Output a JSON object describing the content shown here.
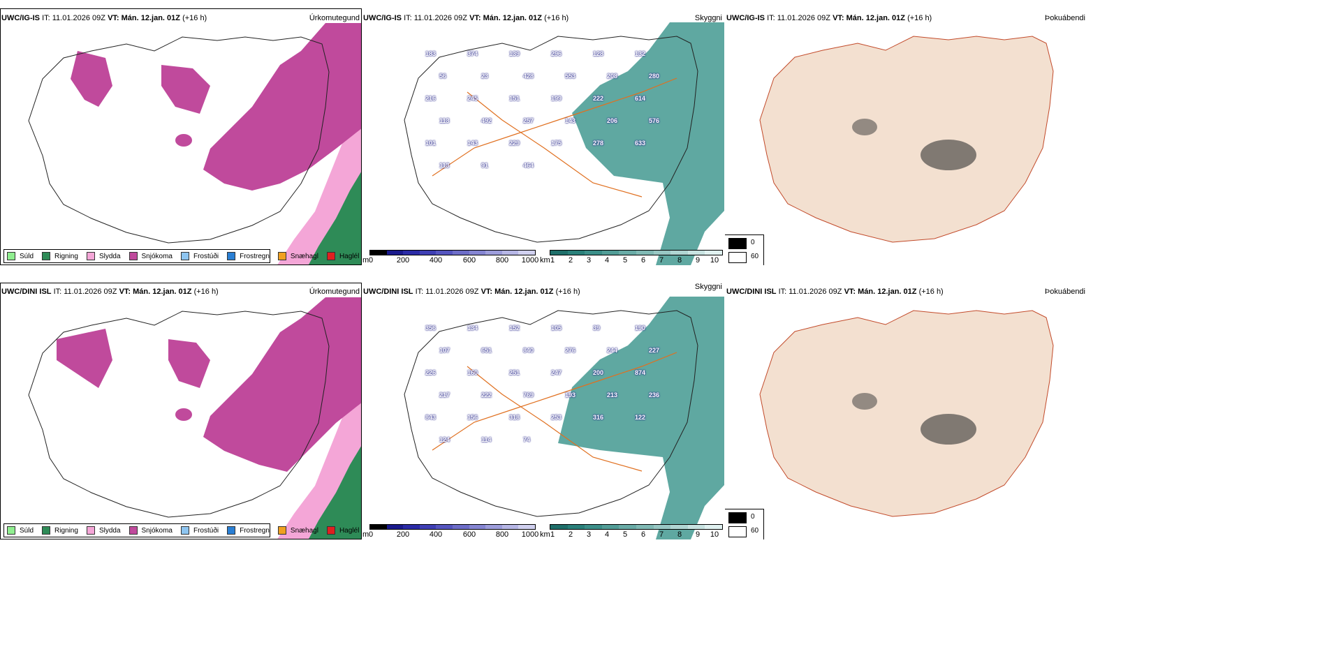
{
  "rows": [
    {
      "model": "UWC/IG-IS",
      "it_label": "IT:",
      "it": "11.01.2026 09Z",
      "vt_label": "VT:",
      "vt": "Mán. 12.jan. 01Z",
      "lead": "(+16 h)"
    },
    {
      "model": "UWC/DINI ISL",
      "it_label": "IT:",
      "it": "11.01.2026 09Z",
      "vt_label": "VT:",
      "vt": "Mán. 12.jan. 01Z",
      "lead": "(+16 h)"
    }
  ],
  "panels": {
    "precip": {
      "title": "Úrkomutegund"
    },
    "cloud": {
      "title": "Skyggni"
    },
    "fog": {
      "title": "Þokuábendi"
    }
  },
  "precip_legend": [
    {
      "label": "Súld",
      "color": "#90ee90"
    },
    {
      "label": "Rigning",
      "color": "#2e8b57"
    },
    {
      "label": "Slydda",
      "color": "#f4a6d7"
    },
    {
      "label": "Snjókoma",
      "color": "#c04a9c"
    },
    {
      "label": "Frostúði",
      "color": "#8ec5f0"
    },
    {
      "label": "Frostregn",
      "color": "#2a7fd4"
    },
    {
      "label": "Snæhagl",
      "color": "#f0a020"
    },
    {
      "label": "Haglél",
      "color": "#e02020"
    }
  ],
  "height_bar": {
    "unit": "m",
    "ticks": [
      "0",
      "200",
      "400",
      "600",
      "800",
      "1000"
    ],
    "colors": [
      "#000000",
      "#1a1a8c",
      "#2b2ba6",
      "#3f3fb4",
      "#5555bf",
      "#6d6dc8",
      "#8585d2",
      "#9d9ddb",
      "#b6b6e5",
      "#d0d0ef"
    ]
  },
  "visibility_bar": {
    "unit": "km",
    "ticks": [
      "1",
      "2",
      "3",
      "4",
      "5",
      "6",
      "7",
      "8",
      "9",
      "10"
    ],
    "colors": [
      "#1f6f6a",
      "#2a807a",
      "#3c8f89",
      "#529d97",
      "#69aba6",
      "#80b9b4",
      "#98c7c3",
      "#b0d5d2",
      "#c8e3e1",
      "#e0f1f0"
    ]
  },
  "fog_legend": {
    "max": "0",
    "min": "60"
  },
  "visibility_labels": [
    [
      "183",
      "374",
      "139",
      "296",
      "128",
      "132",
      "56",
      "23",
      "428",
      "553",
      "208",
      "280",
      "216",
      "245",
      "151",
      "199",
      "222",
      "614",
      "113",
      "492",
      "257",
      "143",
      "206",
      "576",
      "101",
      "143",
      "229",
      "175",
      "278",
      "633",
      "113",
      "91",
      "464"
    ],
    [
      "356",
      "134",
      "152",
      "105",
      "39",
      "190",
      "107",
      "651",
      "840",
      "276",
      "244",
      "227",
      "226",
      "160",
      "251",
      "247",
      "200",
      "874",
      "217",
      "222",
      "769",
      "193",
      "213",
      "236",
      "843",
      "156",
      "318",
      "253",
      "316",
      "122",
      "124",
      "114",
      "74"
    ]
  ],
  "colors": {
    "snow": "#c04a9c",
    "sleet": "#f4a6d7",
    "rain": "#2e8b57",
    "teal": "#2a8b82",
    "fog_land": "#f3e0d0",
    "roads": "#e07020"
  }
}
